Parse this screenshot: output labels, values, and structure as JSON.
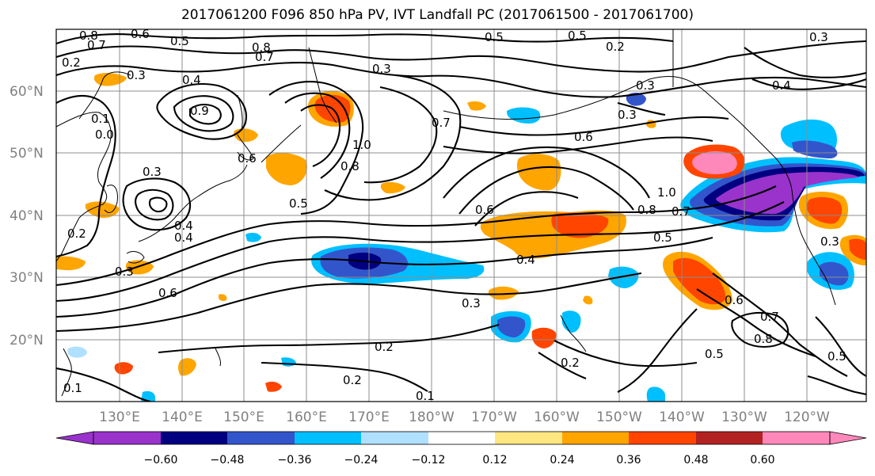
{
  "title": "2017061200 F096 850 hPa PV, IVT Landfall PC (2017061500 - 2017061700)",
  "colors": {
    "palette": [
      "#9933cc",
      "#000080",
      "#3355cc",
      "#00bfff",
      "#b0e0ff",
      "#ffffff",
      "#ffe680",
      "#ffa500",
      "#ff4500",
      "#b22222",
      "#ff88bb"
    ],
    "contour": "#000000",
    "grid": "#8c8c8c"
  },
  "lat_labels": [
    "60°N",
    "50°N",
    "40°N",
    "30°N",
    "20°N"
  ],
  "lon_labels": [
    "130°E",
    "140°E",
    "150°E",
    "160°E",
    "170°E",
    "180°W",
    "170°W",
    "160°W",
    "150°W",
    "140°W",
    "130°W",
    "120°W"
  ],
  "colorbar": {
    "ticks": [
      "−0.60",
      "−0.48",
      "−0.36",
      "−0.24",
      "−0.12",
      "0.12",
      "0.24",
      "0.36",
      "0.48",
      "0.60"
    ]
  },
  "contour_labels": [
    "0.8",
    "0.7",
    "0.6",
    "0.5",
    "0.8",
    "0.7",
    "0.4",
    "0.3",
    "0.2",
    "0.1",
    "0.0",
    "0.3",
    "0.4",
    "0.9",
    "0.6",
    "0.3",
    "0.7",
    "1.0",
    "0.8",
    "0.6",
    "0.5",
    "0.4",
    "0.5",
    "0.3",
    "0.3",
    "0.2",
    "0.2",
    "0.2",
    "0.6",
    "0.4",
    "0.1",
    "0.6",
    "0.5",
    "0.8",
    "0.7",
    "1.0",
    "0.6",
    "0.7",
    "0.8",
    "0.5",
    "0.5",
    "0.3",
    "0.4",
    "0.3",
    "0.5",
    "0.2",
    "0.3",
    "0.2",
    "0.1",
    "0.3"
  ]
}
